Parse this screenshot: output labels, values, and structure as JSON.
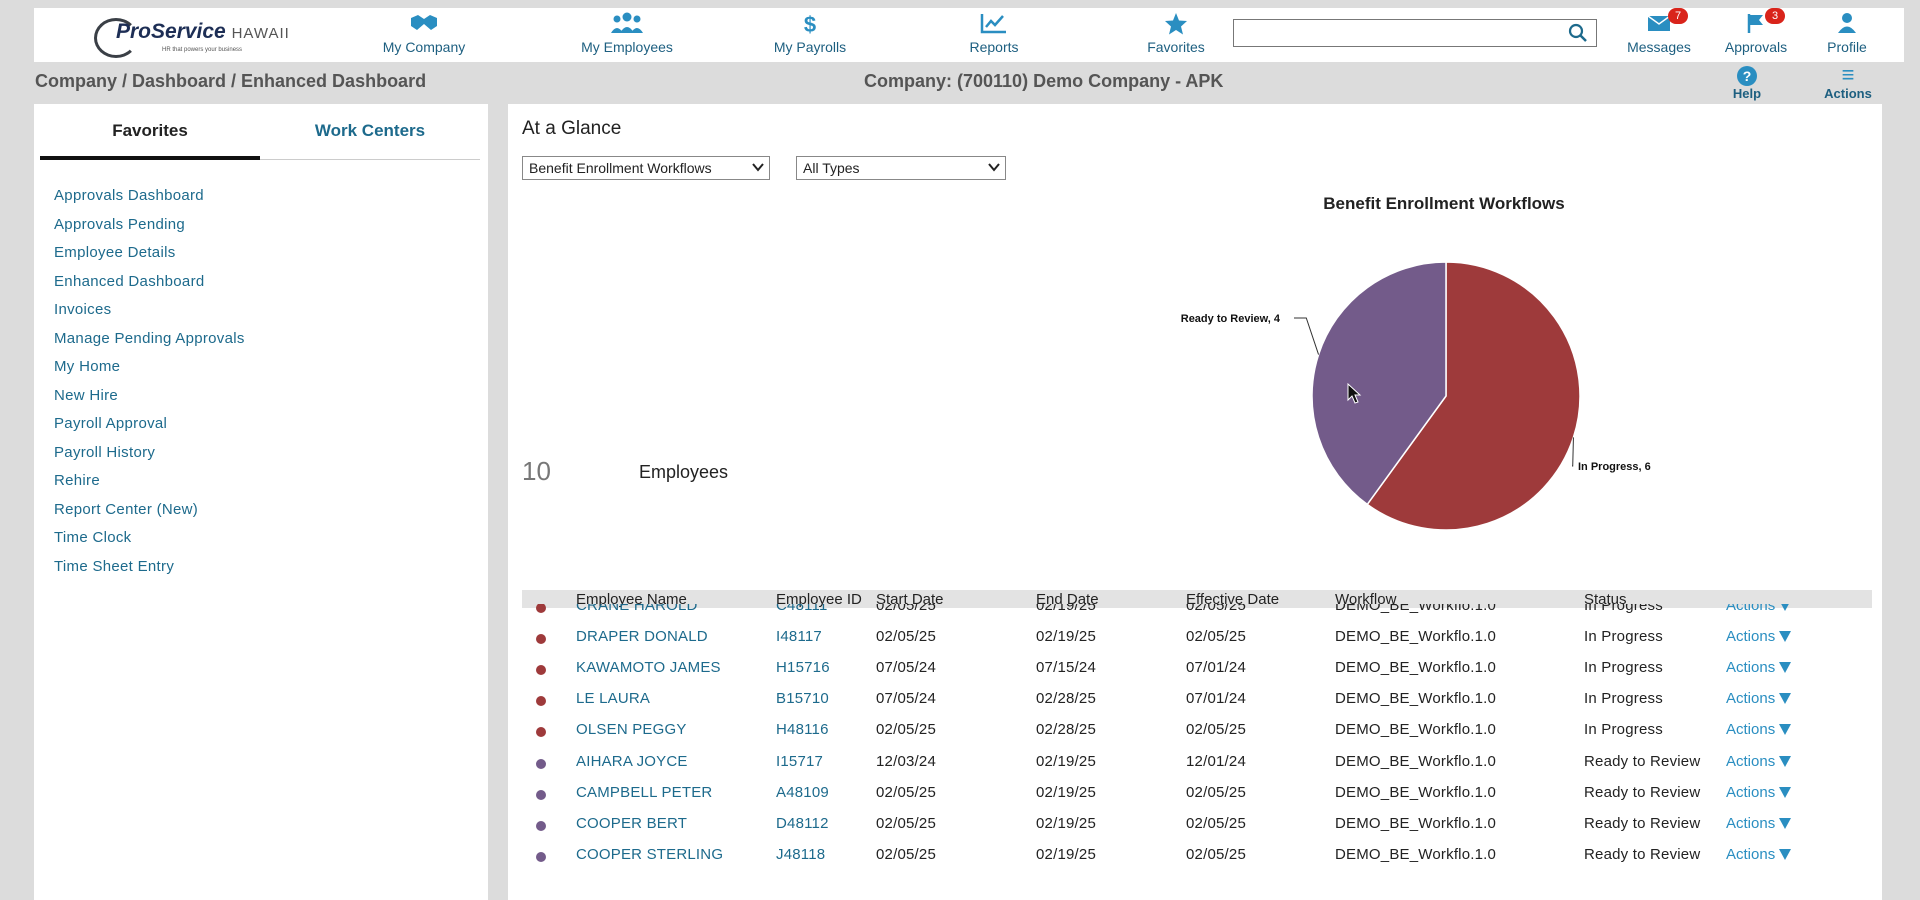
{
  "header": {
    "logo_text": "ProService",
    "logo_region": "HAWAII",
    "logo_tagline": "HR that powers your business",
    "nav": [
      {
        "id": "my-company",
        "label": "My Company",
        "icon": "handshake-icon"
      },
      {
        "id": "my-employees",
        "label": "My Employees",
        "icon": "people-icon"
      },
      {
        "id": "my-payrolls",
        "label": "My Payrolls",
        "icon": "dollar-icon"
      },
      {
        "id": "reports",
        "label": "Reports",
        "icon": "line-chart-icon"
      },
      {
        "id": "favorites",
        "label": "Favorites",
        "icon": "star-icon"
      }
    ],
    "search": {
      "value": "",
      "placeholder": ""
    },
    "messages": {
      "label": "Messages",
      "count": "7"
    },
    "approvals": {
      "label": "Approvals",
      "count": "3"
    },
    "profile": {
      "label": "Profile"
    }
  },
  "subheader": {
    "breadcrumb": "Company / Dashboard / Enhanced Dashboard",
    "company": "Company: (700110) Demo Company - APK",
    "help": "Help",
    "actions": "Actions"
  },
  "sidebar": {
    "tabs": {
      "favorites": "Favorites",
      "work_centers": "Work Centers"
    },
    "items": [
      "Approvals Dashboard",
      "Approvals Pending",
      "Employee Details",
      "Enhanced Dashboard",
      "Invoices",
      "Manage Pending Approvals",
      "My Home",
      "New Hire",
      "Payroll Approval",
      "Payroll History",
      "Rehire",
      "Report Center (New)",
      "Time Clock",
      "Time Sheet Entry"
    ]
  },
  "main": {
    "title": "At a Glance",
    "workflow_select": "Benefit Enrollment Workflows",
    "type_select": "All Types",
    "employee_count": "10",
    "employee_count_label": "Employees"
  },
  "colors": {
    "in_progress": "#9e3a3b",
    "ready_to_review": "#735b8a",
    "link": "#1d6a8c",
    "accent": "#2a8ec1"
  },
  "chart_data": {
    "type": "pie",
    "title": "Benefit Enrollment Workflows",
    "slices": [
      {
        "label": "In Progress",
        "value": 6,
        "display": "In Progress, 6",
        "color": "#9e3a3b"
      },
      {
        "label": "Ready to Review",
        "value": 4,
        "display": "Ready to Review, 4",
        "color": "#735b8a"
      }
    ]
  },
  "table": {
    "columns": [
      "Employee Name",
      "Employee ID",
      "Start Date",
      "End Date",
      "Effective Date",
      "Workflow",
      "Status"
    ],
    "actions_label": "Actions",
    "rows": [
      {
        "name": "CRANE HAROLD",
        "id": "C48111",
        "start": "02/05/25",
        "end": "02/19/25",
        "effective": "02/05/25",
        "workflow": "DEMO_BE_Workflo.1.0",
        "status": "In Progress",
        "color": "#9e3a3b"
      },
      {
        "name": "DRAPER DONALD",
        "id": "I48117",
        "start": "02/05/25",
        "end": "02/19/25",
        "effective": "02/05/25",
        "workflow": "DEMO_BE_Workflo.1.0",
        "status": "In Progress",
        "color": "#9e3a3b"
      },
      {
        "name": "KAWAMOTO JAMES",
        "id": "H15716",
        "start": "07/05/24",
        "end": "07/15/24",
        "effective": "07/01/24",
        "workflow": "DEMO_BE_Workflo.1.0",
        "status": "In Progress",
        "color": "#9e3a3b"
      },
      {
        "name": "LE LAURA",
        "id": "B15710",
        "start": "07/05/24",
        "end": "02/28/25",
        "effective": "07/01/24",
        "workflow": "DEMO_BE_Workflo.1.0",
        "status": "In Progress",
        "color": "#9e3a3b"
      },
      {
        "name": "OLSEN PEGGY",
        "id": "H48116",
        "start": "02/05/25",
        "end": "02/28/25",
        "effective": "02/05/25",
        "workflow": "DEMO_BE_Workflo.1.0",
        "status": "In Progress",
        "color": "#9e3a3b"
      },
      {
        "name": "AIHARA JOYCE",
        "id": "I15717",
        "start": "12/03/24",
        "end": "02/19/25",
        "effective": "12/01/24",
        "workflow": "DEMO_BE_Workflo.1.0",
        "status": "Ready to Review",
        "color": "#735b8a"
      },
      {
        "name": "CAMPBELL PETER",
        "id": "A48109",
        "start": "02/05/25",
        "end": "02/19/25",
        "effective": "02/05/25",
        "workflow": "DEMO_BE_Workflo.1.0",
        "status": "Ready to Review",
        "color": "#735b8a"
      },
      {
        "name": "COOPER BERT",
        "id": "D48112",
        "start": "02/05/25",
        "end": "02/19/25",
        "effective": "02/05/25",
        "workflow": "DEMO_BE_Workflo.1.0",
        "status": "Ready to Review",
        "color": "#735b8a"
      },
      {
        "name": "COOPER STERLING",
        "id": "J48118",
        "start": "02/05/25",
        "end": "02/19/25",
        "effective": "02/05/25",
        "workflow": "DEMO_BE_Workflo.1.0",
        "status": "Ready to Review",
        "color": "#735b8a"
      }
    ]
  }
}
